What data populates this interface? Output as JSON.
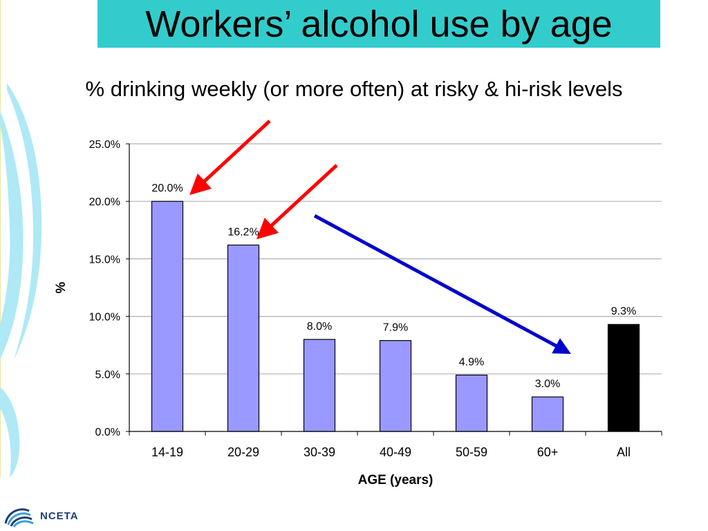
{
  "slide": {
    "title": "Workers’ alcohol use by age",
    "subtitle": "% drinking weekly (or more often) at risky & hi-risk levels",
    "logo_text": "NCETA"
  },
  "colors": {
    "title_background": "#33cccc",
    "bar_default": "#9999ff",
    "bar_all": "#000000",
    "arrow_red": "#ff0000",
    "arrow_blue": "#0000cc",
    "decor_cyan": "#aee9f5"
  },
  "chart_data": {
    "type": "bar",
    "categories": [
      "14-19",
      "20-29",
      "30-39",
      "40-49",
      "50-59",
      "60+",
      "All"
    ],
    "values": [
      20.0,
      16.2,
      8.0,
      7.9,
      4.9,
      3.0,
      9.3
    ],
    "data_labels": [
      "20.0%",
      "16.2%",
      "8.0%",
      "7.9%",
      "4.9%",
      "3.0%",
      "9.3%"
    ],
    "xlabel": "AGE (years)",
    "ylabel": "%",
    "ylim": [
      0,
      25
    ],
    "yticks": [
      0,
      5,
      10,
      15,
      20,
      25
    ],
    "ytick_labels": [
      "0.0%",
      "5.0%",
      "10.0%",
      "15.0%",
      "20.0%",
      "25.0%"
    ],
    "grid": true,
    "legend": "none",
    "highlight_category": "All"
  }
}
